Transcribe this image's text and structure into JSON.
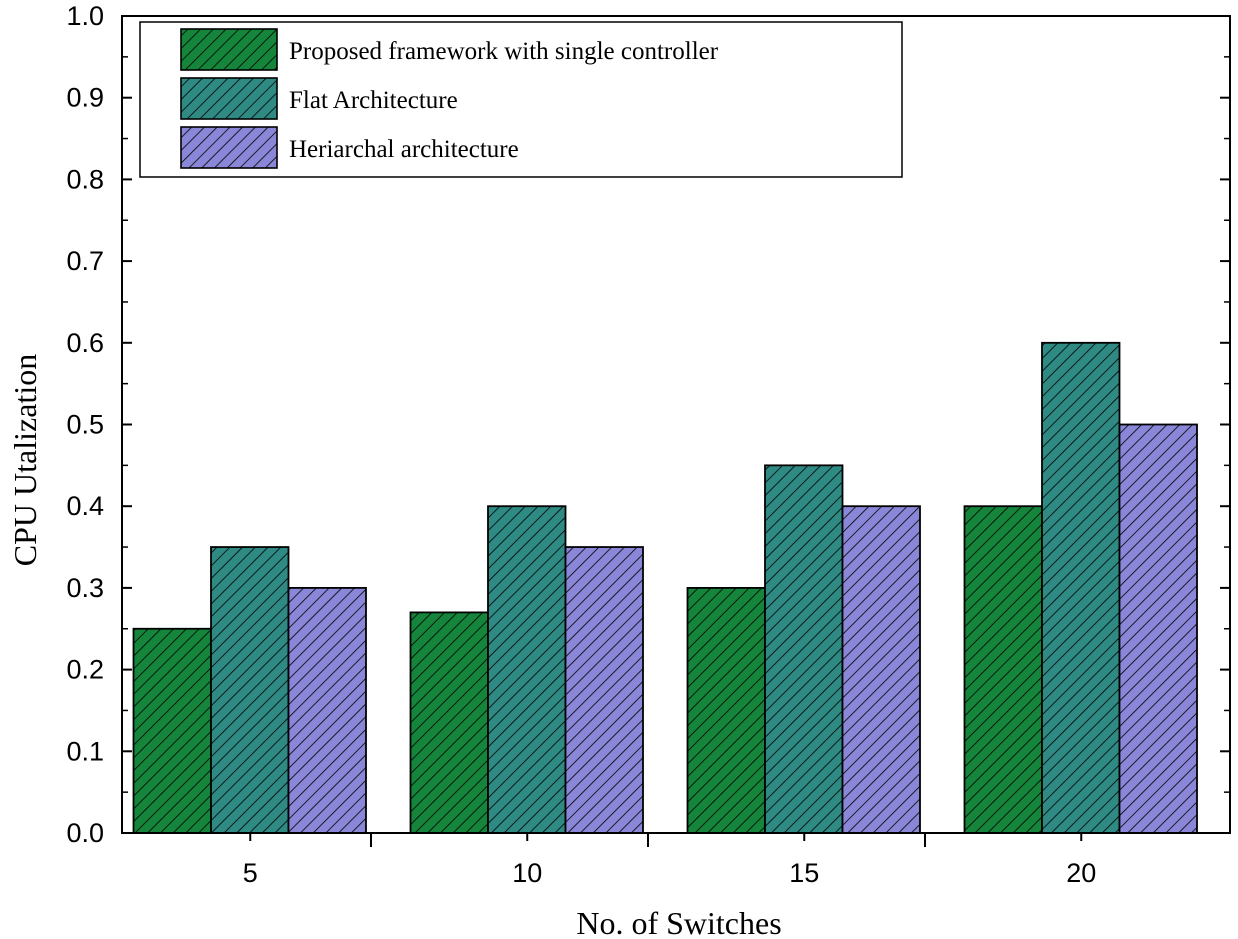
{
  "chart_data": {
    "type": "bar",
    "categories": [
      "5",
      "10",
      "15",
      "20"
    ],
    "series": [
      {
        "name": "Proposed framework with single controller",
        "color": "#15853c",
        "values": [
          0.25,
          0.27,
          0.3,
          0.4
        ]
      },
      {
        "name": "Flat Architecture",
        "color": "#2f8a84",
        "values": [
          0.35,
          0.4,
          0.45,
          0.6
        ]
      },
      {
        "name": "Heriarchal architecture",
        "color": "#8a86d8",
        "values": [
          0.3,
          0.35,
          0.4,
          0.5
        ]
      }
    ],
    "xlabel": "No. of Switches",
    "ylabel": "CPU Utalization",
    "ylim": [
      0.0,
      1.0
    ],
    "yticks": [
      "0.0",
      "0.1",
      "0.2",
      "0.3",
      "0.4",
      "0.5",
      "0.6",
      "0.7",
      "0.8",
      "0.9",
      "1.0"
    ],
    "fill_pattern": "diagonal-hatch",
    "grid": false,
    "legend_position": "top-left"
  }
}
